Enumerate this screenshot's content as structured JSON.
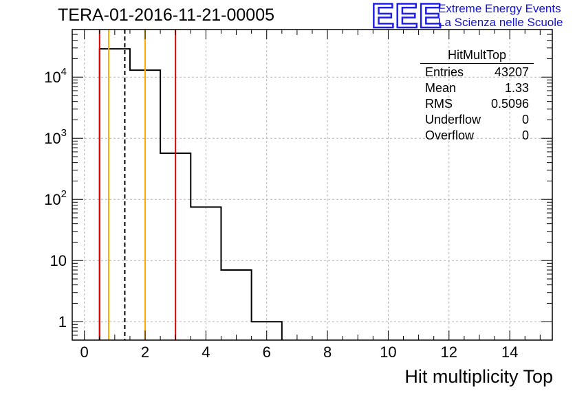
{
  "chart_data": {
    "type": "bar",
    "title": "TERA-01-2016-11-21-00005",
    "xlabel": "Hit multiplicity Top",
    "ylabel": "",
    "xlim": [
      -0.4,
      15.4
    ],
    "ylim": [
      0.5,
      60000
    ],
    "yscale": "log",
    "grid": true,
    "xticks": [
      0,
      2,
      4,
      6,
      8,
      10,
      12,
      14
    ],
    "yticks": [
      {
        "value": 1,
        "label": "1"
      },
      {
        "value": 10,
        "label": "10"
      },
      {
        "value": 100,
        "label": "10^2"
      },
      {
        "value": 1000,
        "label": "10^3"
      },
      {
        "value": 10000,
        "label": "10^4"
      }
    ],
    "series": [
      {
        "name": "HitMultTop",
        "style": "histogram-step",
        "color": "#000000",
        "bins": [
          {
            "low": 0.5,
            "high": 1.5,
            "value": 29000
          },
          {
            "low": 1.5,
            "high": 2.5,
            "value": 13000
          },
          {
            "low": 2.5,
            "high": 3.5,
            "value": 570
          },
          {
            "low": 3.5,
            "high": 4.5,
            "value": 75
          },
          {
            "low": 4.5,
            "high": 5.5,
            "value": 7
          },
          {
            "low": 5.5,
            "high": 6.5,
            "value": 1
          }
        ]
      }
    ],
    "vertical_lines": [
      {
        "x": 0.5,
        "color": "#e00000",
        "style": "solid"
      },
      {
        "x": 3.0,
        "color": "#e00000",
        "style": "solid"
      },
      {
        "x": 0.8,
        "color": "#ffaa00",
        "style": "solid"
      },
      {
        "x": 2.0,
        "color": "#ffaa00",
        "style": "solid"
      },
      {
        "x": 1.33,
        "color": "#000000",
        "style": "dashed"
      }
    ],
    "stats_box": {
      "title": "HitMultTop",
      "rows": [
        {
          "label": "Entries",
          "value": "43207"
        },
        {
          "label": "Mean",
          "value": "1.33"
        },
        {
          "label": "RMS",
          "value": "0.5096"
        },
        {
          "label": "Underflow",
          "value": "0"
        },
        {
          "label": "Overflow",
          "value": "0"
        }
      ]
    }
  },
  "logo": {
    "mark": "EEE",
    "line1": "Extreme Energy Events",
    "line2": "La Scienza nelle Scuole",
    "color": "#1414d2"
  }
}
